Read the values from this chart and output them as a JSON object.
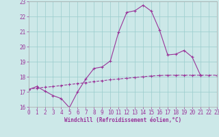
{
  "xlabel": "Windchill (Refroidissement éolien,°C)",
  "xlim": [
    0,
    23
  ],
  "ylim": [
    16,
    23
  ],
  "bg_color": "#cce8e8",
  "line_color": "#993399",
  "grid_color": "#99cccc",
  "line_main_x": [
    0,
    1,
    2,
    3,
    4,
    5,
    6,
    7,
    8,
    9,
    10,
    11,
    12,
    13,
    14,
    15,
    16,
    17,
    18,
    19,
    20,
    21,
    22,
    23
  ],
  "line_main_y": [
    17.15,
    17.35,
    17.05,
    16.75,
    16.55,
    15.95,
    17.0,
    17.85,
    18.55,
    18.65,
    19.05,
    20.95,
    22.27,
    22.38,
    22.75,
    22.35,
    21.1,
    19.45,
    19.5,
    19.75,
    19.3,
    18.1,
    null,
    null
  ],
  "line_upper_x": [
    0,
    1,
    2,
    3,
    4,
    5,
    6,
    7,
    8,
    9,
    10,
    11,
    12,
    13,
    14,
    15,
    16,
    17,
    18,
    19,
    20,
    21,
    22,
    23
  ],
  "line_upper_y": [
    17.15,
    null,
    null,
    null,
    null,
    null,
    null,
    null,
    null,
    null,
    null,
    null,
    null,
    null,
    null,
    null,
    null,
    null,
    null,
    null,
    null,
    null,
    null,
    18.1
  ],
  "line_diag_x": [
    0,
    1,
    2,
    3,
    4,
    5,
    6,
    7,
    8,
    9,
    10,
    11,
    12,
    13,
    14,
    15,
    16,
    17,
    18,
    19,
    20,
    21,
    22,
    23
  ],
  "line_diag_y": [
    17.15,
    17.25,
    17.3,
    17.35,
    17.42,
    17.48,
    17.55,
    17.6,
    17.68,
    17.73,
    17.8,
    17.85,
    17.9,
    17.95,
    18.0,
    18.05,
    18.08,
    18.1,
    18.1,
    18.1,
    18.1,
    18.1,
    18.1,
    18.1
  ],
  "line_mid_x": [
    0,
    1,
    2,
    3,
    4,
    5,
    6,
    7,
    8,
    9,
    10,
    11,
    12,
    13,
    14,
    15,
    16,
    17,
    18,
    19,
    20,
    21,
    22,
    23
  ],
  "line_mid_y": [
    17.15,
    null,
    16.85,
    16.55,
    16.45,
    null,
    17.0,
    17.65,
    18.45,
    18.55,
    null,
    null,
    null,
    null,
    null,
    null,
    null,
    null,
    null,
    null,
    null,
    null,
    null,
    null
  ]
}
